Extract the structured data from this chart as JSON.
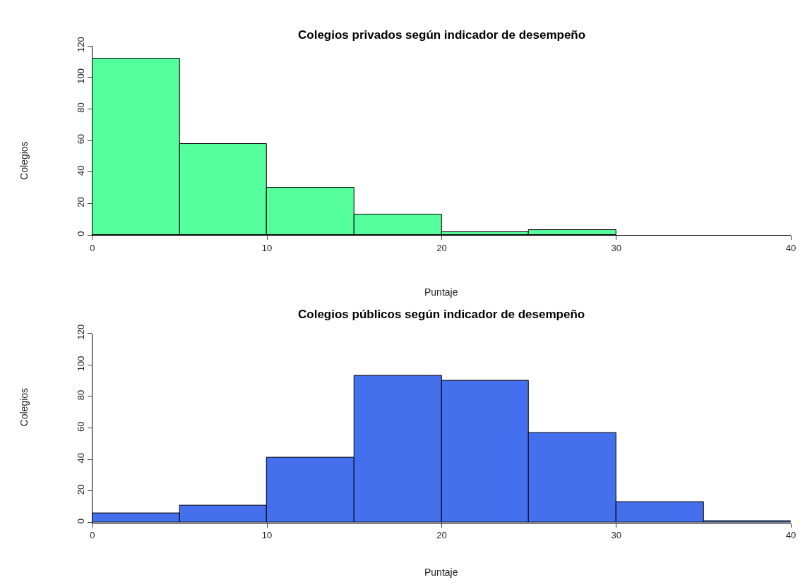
{
  "chart_data": [
    {
      "type": "histogram",
      "title": "Colegios privados según indicador de desempeño",
      "xlabel": "Puntaje",
      "ylabel": "Colegios",
      "color": "#55ff9e",
      "bins": [
        0,
        5,
        10,
        15,
        20,
        25,
        30
      ],
      "values": [
        112,
        58,
        30,
        13,
        2,
        3
      ],
      "xlim": [
        0,
        40
      ],
      "xticks": [
        0,
        10,
        20,
        30,
        40
      ],
      "ylim": [
        0,
        120
      ],
      "yticks": [
        0,
        20,
        40,
        60,
        80,
        100,
        120
      ]
    },
    {
      "type": "histogram",
      "title": "Colegios públicos según indicador de desempeño",
      "xlabel": "Puntaje",
      "ylabel": "Colegios",
      "color": "#4470ee",
      "bins": [
        0,
        5,
        10,
        15,
        20,
        25,
        30,
        35,
        40
      ],
      "values": [
        6,
        11,
        41,
        93,
        90,
        57,
        13,
        1
      ],
      "xlim": [
        0,
        40
      ],
      "xticks": [
        0,
        10,
        20,
        30,
        40
      ],
      "ylim": [
        0,
        120
      ],
      "yticks": [
        0,
        20,
        40,
        60,
        80,
        100,
        120
      ]
    }
  ]
}
